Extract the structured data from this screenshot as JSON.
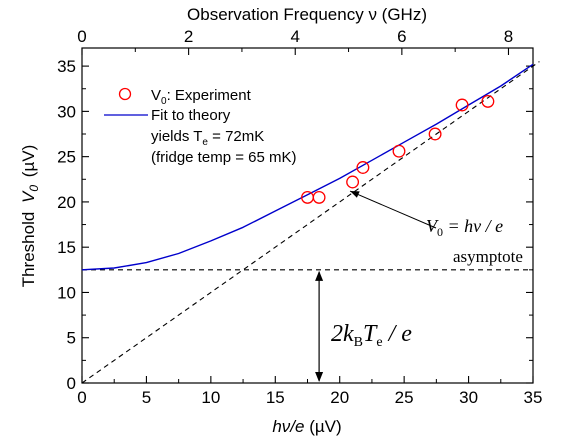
{
  "chart_data": {
    "type": "scatter",
    "xlabel": {
      "main": "hν/e",
      "unit": "(µV)"
    },
    "ylabel": {
      "main": "Threshold",
      "var": "V",
      "sub": "0",
      "unit": "(µV)"
    },
    "top_xlabel": "Observation Frequency ν (GHz)",
    "xlim": [
      0,
      35
    ],
    "ylim": [
      0,
      37
    ],
    "top_xlim": [
      0,
      8.46
    ],
    "x_ticks": [
      0,
      5,
      10,
      15,
      20,
      25,
      30,
      35
    ],
    "y_ticks": [
      0,
      5,
      10,
      15,
      20,
      25,
      30,
      35
    ],
    "top_ticks": [
      0,
      2,
      4,
      6,
      8
    ],
    "series": [
      {
        "name": "V0: Experiment",
        "kind": "scatter",
        "marker": "open-circle",
        "color": "#ff0000",
        "x": [
          17.5,
          18.4,
          21.0,
          21.8,
          24.6,
          27.4,
          29.5,
          31.5
        ],
        "y": [
          20.5,
          20.5,
          22.2,
          23.8,
          25.6,
          27.5,
          30.7,
          31.1
        ]
      },
      {
        "name": "Fit to theory",
        "kind": "line",
        "color": "#0000cc",
        "x": [
          0,
          2.5,
          5,
          7.5,
          10,
          12.5,
          15,
          17.5,
          20,
          22.5,
          25,
          27.5,
          30,
          32.5,
          35
        ],
        "y": [
          12.5,
          12.7,
          13.3,
          14.3,
          15.7,
          17.2,
          19.0,
          20.8,
          22.6,
          24.6,
          26.6,
          28.6,
          30.7,
          32.8,
          35.2
        ]
      },
      {
        "name": "",
        "kind": "dashed-line",
        "color": "#000000",
        "x": [
          0,
          35.5
        ],
        "y": [
          0,
          35.5
        ]
      },
      {
        "name": "",
        "kind": "dashed-line",
        "color": "#000000",
        "x": [
          0,
          35
        ],
        "y": [
          12.5,
          12.5
        ]
      }
    ],
    "legend": {
      "placement": "top-left",
      "entries": [
        {
          "text": "V",
          "sub": "0",
          "after": ": Experiment"
        },
        {
          "text": "Fit to theory"
        },
        {
          "text": "yields T",
          "sub": "e",
          "after": " = 72mK"
        },
        {
          "text": "(fridge temp = 65 mK)"
        }
      ]
    },
    "annotations": {
      "asymptote_eq": {
        "lhs": "V",
        "lhs_sub": "0",
        "rhs": " = hν / e",
        "point_x": 20.8,
        "point_y": 21.2
      },
      "asymptote_label": "asymptote",
      "gap_label": {
        "coef": "2k",
        "coef_sub": "B",
        "var": "T",
        "var_sub": "e",
        "tail": " / e",
        "x": 18.4,
        "y_top": 12.5,
        "y_bottom": 0
      }
    }
  }
}
